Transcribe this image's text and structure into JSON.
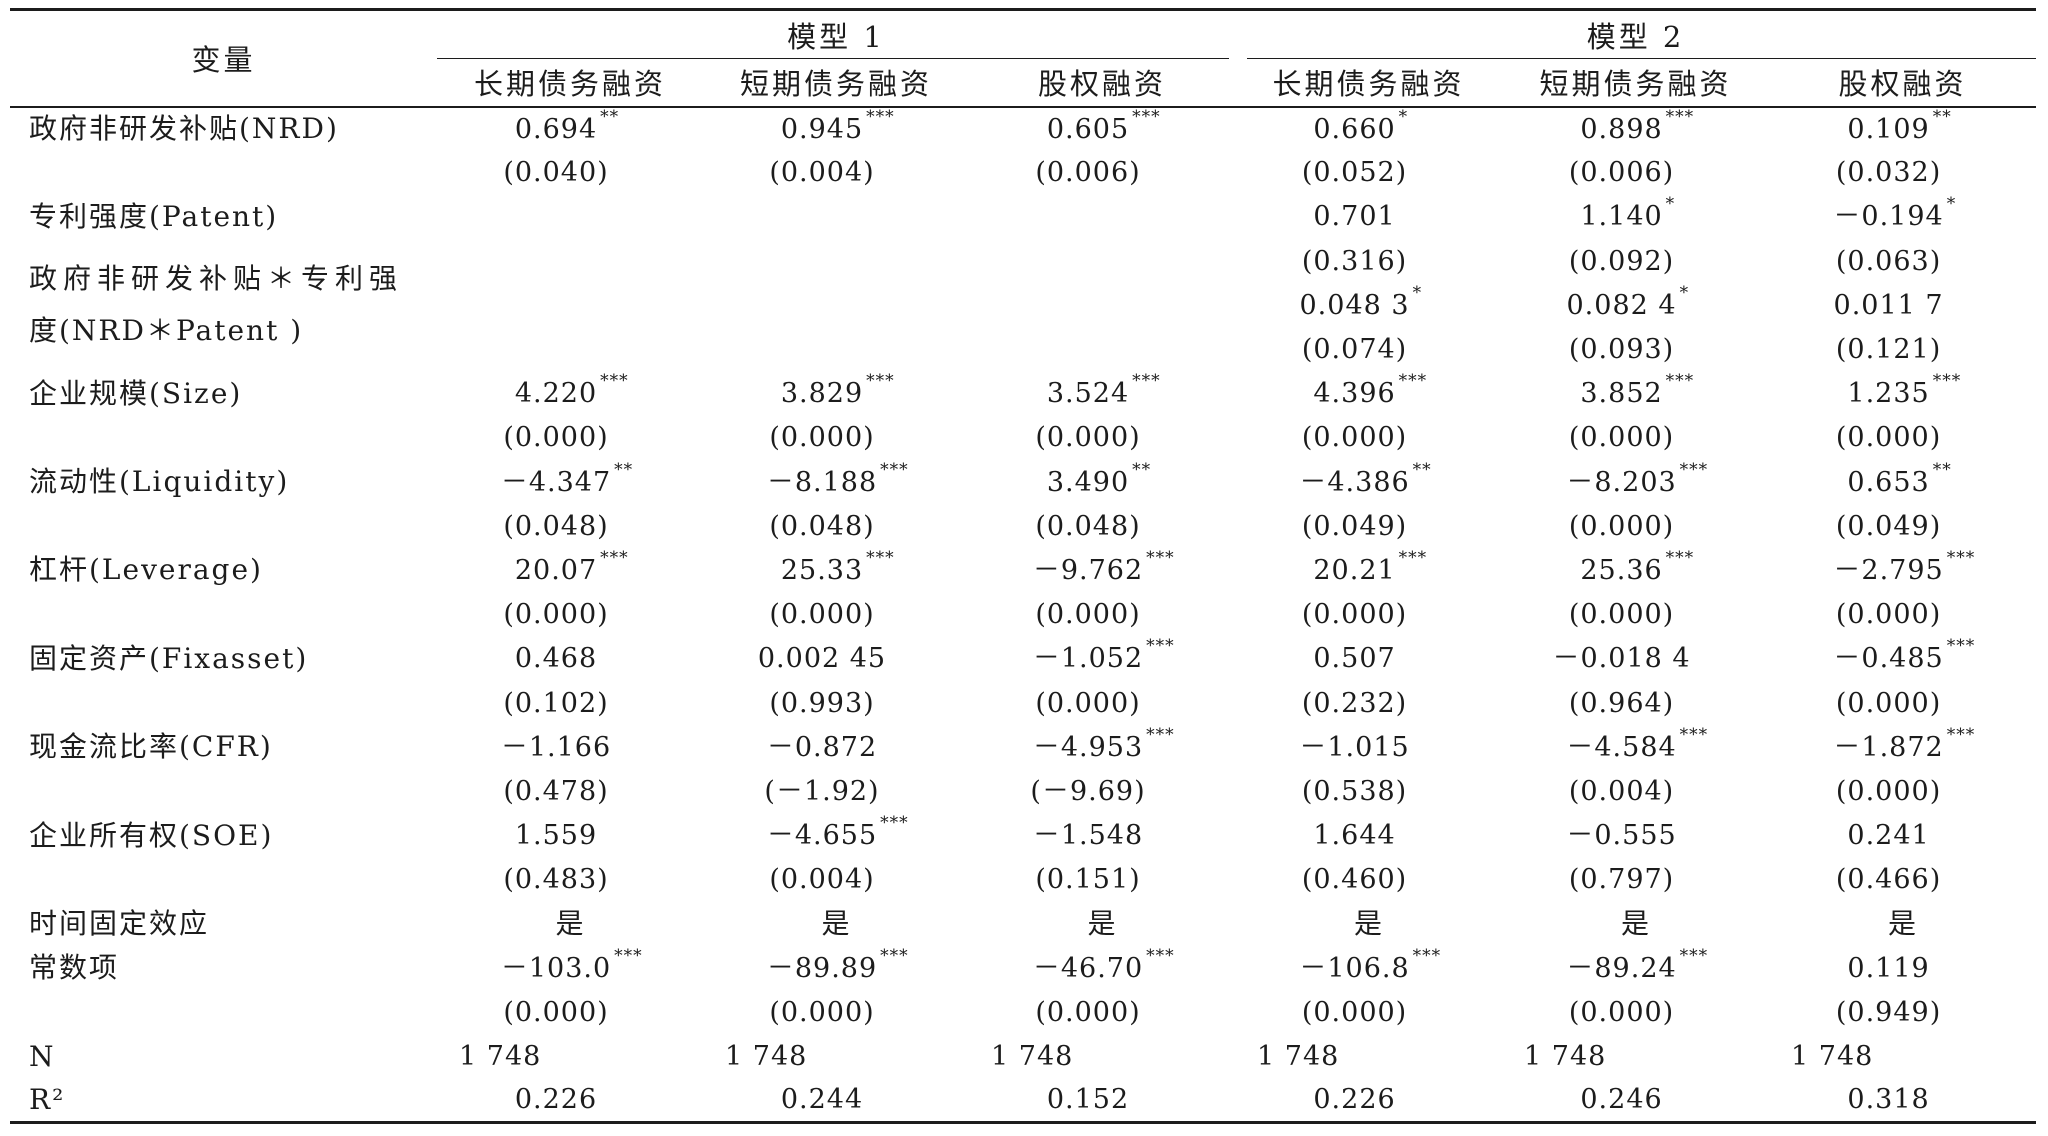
{
  "table": {
    "header": {
      "variable": "变量",
      "models": [
        {
          "title": "模型 1",
          "columns": [
            "长期债务融资",
            "短期债务融资",
            "股权融资"
          ]
        },
        {
          "title": "模型 2",
          "columns": [
            "长期债务融资",
            "短期债务融资",
            "股权融资"
          ]
        }
      ]
    },
    "rows": [
      {
        "label": "政府非研发补贴(NRD)",
        "cells": [
          {
            "v": "0.694",
            "s": "**"
          },
          {
            "v": "0.945",
            "s": "***"
          },
          {
            "v": "0.605",
            "s": "***"
          },
          {
            "v": "0.660",
            "s": "*"
          },
          {
            "v": "0.898",
            "s": "***"
          },
          {
            "v": "0.109",
            "s": "**"
          }
        ]
      },
      {
        "cells": [
          {
            "v": "(0.040)"
          },
          {
            "v": "(0.004)"
          },
          {
            "v": "(0.006)"
          },
          {
            "v": "(0.052)"
          },
          {
            "v": "(0.006)"
          },
          {
            "v": "(0.032)"
          }
        ]
      },
      {
        "label": "专利强度(Patent)",
        "cells": [
          null,
          null,
          null,
          {
            "v": "0.701"
          },
          {
            "v": "1.140",
            "s": "*"
          },
          {
            "v": "－0.194",
            "s": "*"
          }
        ]
      },
      {
        "label_lines": [
          "政府非研发补贴＊专利强",
          "度(NRD＊Patent )"
        ],
        "cells": [
          null,
          null,
          null,
          {
            "v": "(0.316)"
          },
          {
            "v": "(0.092)"
          },
          {
            "v": "(0.063)"
          }
        ]
      },
      {
        "cells": [
          null,
          null,
          null,
          {
            "v": "0.048 3",
            "s": "*"
          },
          {
            "v": "0.082 4",
            "s": "*"
          },
          {
            "v": "0.011 7"
          }
        ]
      },
      {
        "cells": [
          null,
          null,
          null,
          {
            "v": "(0.074)"
          },
          {
            "v": "(0.093)"
          },
          {
            "v": "(0.121)"
          }
        ]
      },
      {
        "label": "企业规模(Size)",
        "cells": [
          {
            "v": "4.220",
            "s": "***"
          },
          {
            "v": "3.829",
            "s": "***"
          },
          {
            "v": "3.524",
            "s": "***"
          },
          {
            "v": "4.396",
            "s": "***"
          },
          {
            "v": "3.852",
            "s": "***"
          },
          {
            "v": "1.235",
            "s": "***"
          }
        ]
      },
      {
        "cells": [
          {
            "v": "(0.000)"
          },
          {
            "v": "(0.000)"
          },
          {
            "v": "(0.000)"
          },
          {
            "v": "(0.000)"
          },
          {
            "v": "(0.000)"
          },
          {
            "v": "(0.000)"
          }
        ]
      },
      {
        "label": "流动性(Liquidity)",
        "cells": [
          {
            "v": "－4.347",
            "s": "**"
          },
          {
            "v": "－8.188",
            "s": "***"
          },
          {
            "v": "3.490",
            "s": "**"
          },
          {
            "v": "－4.386",
            "s": "**"
          },
          {
            "v": "－8.203",
            "s": "***"
          },
          {
            "v": "0.653",
            "s": "**"
          }
        ]
      },
      {
        "cells": [
          {
            "v": "(0.048)"
          },
          {
            "v": "(0.048)"
          },
          {
            "v": "(0.048)"
          },
          {
            "v": "(0.049)"
          },
          {
            "v": "(0.000)"
          },
          {
            "v": "(0.049)"
          }
        ]
      },
      {
        "label": "杠杆(Leverage)",
        "cells": [
          {
            "v": "20.07",
            "s": "***"
          },
          {
            "v": "25.33",
            "s": "***"
          },
          {
            "v": "－9.762",
            "s": "***"
          },
          {
            "v": "20.21",
            "s": "***"
          },
          {
            "v": "25.36",
            "s": "***"
          },
          {
            "v": "－2.795",
            "s": "***"
          }
        ]
      },
      {
        "cells": [
          {
            "v": "(0.000)"
          },
          {
            "v": "(0.000)"
          },
          {
            "v": "(0.000)"
          },
          {
            "v": "(0.000)"
          },
          {
            "v": "(0.000)"
          },
          {
            "v": "(0.000)"
          }
        ]
      },
      {
        "label": "固定资产(Fixasset)",
        "cells": [
          {
            "v": "0.468"
          },
          {
            "v": "0.002 45"
          },
          {
            "v": "－1.052",
            "s": "***"
          },
          {
            "v": "0.507"
          },
          {
            "v": "－0.018 4"
          },
          {
            "v": "－0.485",
            "s": "***"
          }
        ]
      },
      {
        "cells": [
          {
            "v": "(0.102)"
          },
          {
            "v": "(0.993)"
          },
          {
            "v": "(0.000)"
          },
          {
            "v": "(0.232)"
          },
          {
            "v": "(0.964)"
          },
          {
            "v": "(0.000)"
          }
        ]
      },
      {
        "label": "现金流比率(CFR)",
        "cells": [
          {
            "v": "－1.166"
          },
          {
            "v": "－0.872"
          },
          {
            "v": "－4.953",
            "s": "***"
          },
          {
            "v": "－1.015"
          },
          {
            "v": "－4.584",
            "s": "***"
          },
          {
            "v": "－1.872",
            "s": "***"
          }
        ]
      },
      {
        "cells": [
          {
            "v": "(0.478)"
          },
          {
            "v": "(－1.92)"
          },
          {
            "v": "(－9.69)"
          },
          {
            "v": "(0.538)"
          },
          {
            "v": "(0.004)"
          },
          {
            "v": "(0.000)"
          }
        ]
      },
      {
        "label": "企业所有权(SOE)",
        "cells": [
          {
            "v": "1.559"
          },
          {
            "v": "－4.655",
            "s": "***"
          },
          {
            "v": "－1.548"
          },
          {
            "v": "1.644"
          },
          {
            "v": "－0.555"
          },
          {
            "v": "0.241"
          }
        ]
      },
      {
        "cells": [
          {
            "v": "(0.483)"
          },
          {
            "v": "(0.004)"
          },
          {
            "v": "(0.151)"
          },
          {
            "v": "(0.460)"
          },
          {
            "v": "(0.797)"
          },
          {
            "v": "(0.466)"
          }
        ]
      },
      {
        "label": "时间固定效应",
        "cells": [
          {
            "v": "是"
          },
          {
            "v": "是"
          },
          {
            "v": "是"
          },
          {
            "v": "是"
          },
          {
            "v": "是"
          },
          {
            "v": "是"
          }
        ]
      },
      {
        "label": "常数项",
        "cells": [
          {
            "v": "－103.0",
            "s": "***"
          },
          {
            "v": "－89.89",
            "s": "***"
          },
          {
            "v": "－46.70",
            "s": "***"
          },
          {
            "v": "－106.8",
            "s": "***"
          },
          {
            "v": "－89.24",
            "s": "***"
          },
          {
            "v": "0.119"
          }
        ]
      },
      {
        "cells": [
          {
            "v": "(0.000)"
          },
          {
            "v": "(0.000)"
          },
          {
            "v": "(0.000)"
          },
          {
            "v": "(0.000)"
          },
          {
            "v": "(0.000)"
          },
          {
            "v": "(0.949)"
          }
        ]
      },
      {
        "label": "N",
        "cells": [
          {
            "v": "1 748"
          },
          {
            "v": "1 748"
          },
          {
            "v": "1 748"
          },
          {
            "v": "1 748"
          },
          {
            "v": "1 748"
          },
          {
            "v": "1 748"
          }
        ]
      },
      {
        "label": "R²",
        "cells": [
          {
            "v": "0.226"
          },
          {
            "v": "0.244"
          },
          {
            "v": "0.152"
          },
          {
            "v": "0.226"
          },
          {
            "v": "0.246"
          },
          {
            "v": "0.318"
          }
        ]
      }
    ]
  }
}
